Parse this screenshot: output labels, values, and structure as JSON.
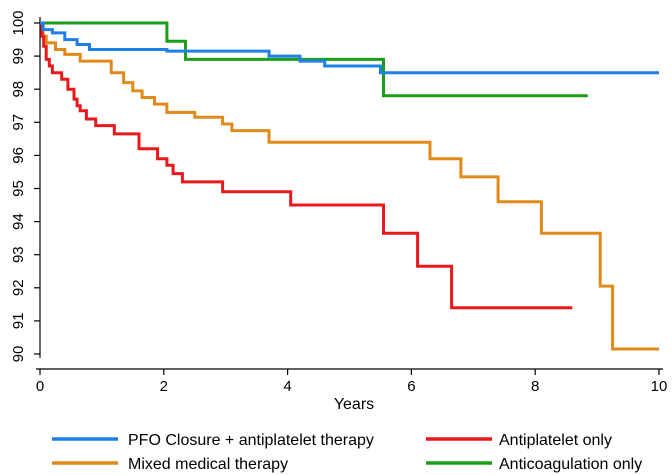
{
  "chart_data": {
    "type": "line",
    "subtype": "step (Kaplan-Meier)",
    "title": "",
    "xlabel": "Years",
    "ylabel": "",
    "xlim": [
      0,
      10
    ],
    "ylim": [
      90,
      100
    ],
    "xticks": [
      0,
      2,
      4,
      6,
      8,
      10
    ],
    "yticks": [
      90,
      91,
      92,
      93,
      94,
      95,
      96,
      97,
      98,
      99,
      100
    ],
    "grid": false,
    "legend_position": "bottom",
    "series": [
      {
        "name": "PFO Closure + antiplatelet therapy",
        "color": "#1f7fe8",
        "points": [
          [
            0,
            100
          ],
          [
            0.05,
            99.8
          ],
          [
            0.2,
            99.7
          ],
          [
            0.4,
            99.5
          ],
          [
            0.6,
            99.35
          ],
          [
            0.8,
            99.2
          ],
          [
            2.05,
            99.15
          ],
          [
            3.7,
            99.0
          ],
          [
            4.2,
            98.85
          ],
          [
            4.6,
            98.7
          ],
          [
            5.5,
            98.5
          ],
          [
            10,
            98.5
          ]
        ]
      },
      {
        "name": "Antiplatelet only",
        "color": "#e8191c",
        "points": [
          [
            0,
            100
          ],
          [
            0.03,
            99.6
          ],
          [
            0.06,
            99.3
          ],
          [
            0.1,
            98.9
          ],
          [
            0.15,
            98.7
          ],
          [
            0.2,
            98.5
          ],
          [
            0.35,
            98.3
          ],
          [
            0.45,
            98.0
          ],
          [
            0.55,
            97.7
          ],
          [
            0.6,
            97.5
          ],
          [
            0.65,
            97.35
          ],
          [
            0.75,
            97.1
          ],
          [
            0.9,
            96.9
          ],
          [
            1.2,
            96.65
          ],
          [
            1.6,
            96.2
          ],
          [
            1.9,
            95.9
          ],
          [
            2.05,
            95.7
          ],
          [
            2.15,
            95.45
          ],
          [
            2.3,
            95.2
          ],
          [
            2.95,
            94.9
          ],
          [
            4.05,
            94.5
          ],
          [
            5.55,
            93.65
          ],
          [
            6.1,
            92.65
          ],
          [
            6.65,
            91.4
          ],
          [
            8.6,
            91.4
          ]
        ]
      },
      {
        "name": "Mixed medical therapy",
        "color": "#e08a1a",
        "points": [
          [
            0,
            100
          ],
          [
            0.05,
            99.6
          ],
          [
            0.1,
            99.4
          ],
          [
            0.25,
            99.2
          ],
          [
            0.4,
            99.05
          ],
          [
            0.65,
            98.85
          ],
          [
            1.15,
            98.5
          ],
          [
            1.35,
            98.2
          ],
          [
            1.5,
            97.95
          ],
          [
            1.65,
            97.75
          ],
          [
            1.85,
            97.55
          ],
          [
            2.05,
            97.3
          ],
          [
            2.5,
            97.15
          ],
          [
            2.95,
            96.95
          ],
          [
            3.1,
            96.75
          ],
          [
            3.7,
            96.4
          ],
          [
            6.3,
            95.9
          ],
          [
            6.8,
            95.35
          ],
          [
            7.4,
            94.6
          ],
          [
            8.1,
            93.65
          ],
          [
            9.05,
            92.05
          ],
          [
            9.25,
            90.15
          ],
          [
            10,
            90.15
          ]
        ]
      },
      {
        "name": "Anticoagulation only",
        "color": "#1a9e1a",
        "points": [
          [
            0,
            100
          ],
          [
            2.05,
            99.45
          ],
          [
            2.35,
            98.9
          ],
          [
            5.55,
            97.8
          ],
          [
            8.85,
            97.8
          ]
        ]
      }
    ]
  }
}
